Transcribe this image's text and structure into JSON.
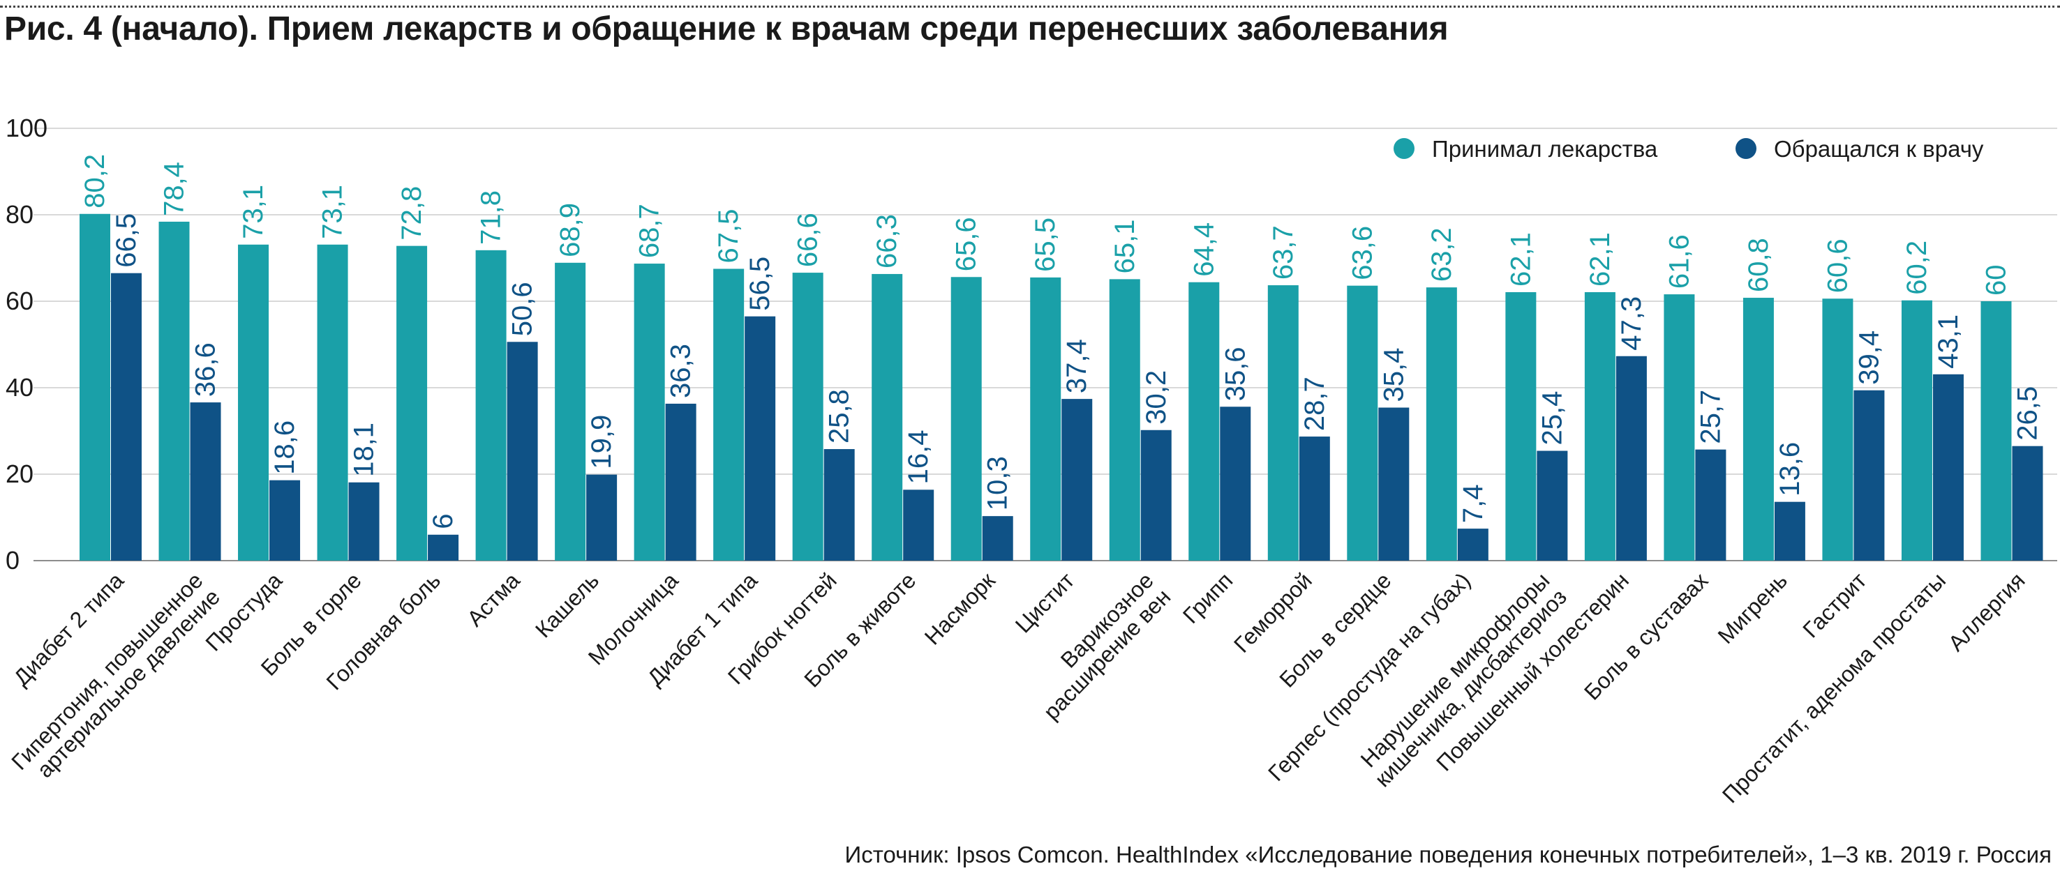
{
  "title": "Рис. 4 (начало). Прием лекарств и обращение к врачам среди перенесших заболевания",
  "source": "Источник: Ipsos Comcon. HealthIndex «Исследование поведения конечных потребителей», 1–3 кв. 2019 г. Россия",
  "colors": {
    "medicine": "#1aa0a8",
    "doctor": "#0f5286",
    "grid": "#d9d9d9"
  },
  "chart_data": {
    "type": "bar",
    "ylim": [
      0,
      100
    ],
    "yticks": [
      0,
      20,
      40,
      60,
      80,
      100
    ],
    "grid": true,
    "legend_position": "top-right",
    "categories": [
      [
        "Диабет 2 типа"
      ],
      [
        "Гипертония, повышенное",
        "артериальное давление"
      ],
      [
        "Простуда"
      ],
      [
        "Боль в горле"
      ],
      [
        "Головная боль"
      ],
      [
        "Астма"
      ],
      [
        "Кашель"
      ],
      [
        "Молочница"
      ],
      [
        "Диабет 1 типа"
      ],
      [
        "Грибок ногтей"
      ],
      [
        "Боль в животе"
      ],
      [
        "Насморк"
      ],
      [
        "Цистит"
      ],
      [
        "Варикозное",
        "расширение вен"
      ],
      [
        "Грипп"
      ],
      [
        "Геморрой"
      ],
      [
        "Боль в сердце"
      ],
      [
        "Герпес (простуда на губах)"
      ],
      [
        "Нарушение микрофлоры",
        "кишечника, дисбактериоз"
      ],
      [
        "Повышенный холестерин"
      ],
      [
        "Боль в суставах"
      ],
      [
        "Мигрень"
      ],
      [
        "Гастрит"
      ],
      [
        "Простатит, аденома простаты"
      ],
      [
        "Аллергия"
      ]
    ],
    "series": [
      {
        "name": "Принимал лекарства",
        "color": "#1aa0a8",
        "values": [
          80.2,
          78.4,
          73.1,
          73.1,
          72.8,
          71.8,
          68.9,
          68.7,
          67.5,
          66.6,
          66.3,
          65.6,
          65.5,
          65.1,
          64.4,
          63.7,
          63.6,
          63.2,
          62.1,
          62.1,
          61.6,
          60.8,
          60.6,
          60.2,
          60
        ],
        "labels": [
          "80,2",
          "78,4",
          "73,1",
          "73,1",
          "72,8",
          "71,8",
          "68,9",
          "68,7",
          "67,5",
          "66,6",
          "66,3",
          "65,6",
          "65,5",
          "65,1",
          "64,4",
          "63,7",
          "63,6",
          "63,2",
          "62,1",
          "62,1",
          "61,6",
          "60,8",
          "60,6",
          "60,2",
          "60"
        ]
      },
      {
        "name": "Обращался к врачу",
        "color": "#0f5286",
        "values": [
          66.5,
          36.6,
          18.6,
          18.1,
          6,
          50.6,
          19.9,
          36.3,
          56.5,
          25.8,
          16.4,
          10.3,
          37.4,
          30.2,
          35.6,
          28.7,
          35.4,
          7.4,
          25.4,
          47.3,
          25.7,
          13.6,
          39.4,
          43.1,
          26.5
        ],
        "labels": [
          "66,5",
          "36,6",
          "18,6",
          "18,1",
          "6",
          "50,6",
          "19,9",
          "36,3",
          "56,5",
          "25,8",
          "16,4",
          "10,3",
          "37,4",
          "30,2",
          "35,6",
          "28,7",
          "35,4",
          "7,4",
          "25,4",
          "47,3",
          "25,7",
          "13,6",
          "39,4",
          "43,1",
          "26,5"
        ]
      }
    ]
  }
}
